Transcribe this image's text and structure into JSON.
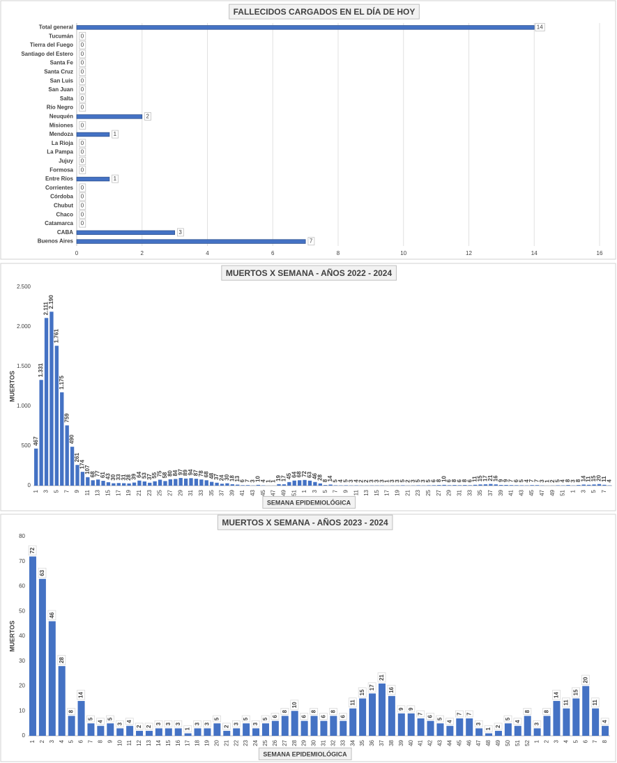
{
  "chart_data": [
    {
      "type": "bar",
      "orientation": "horizontal",
      "title": "FALLECIDOS CARGADOS EN EL DÍA DE HOY",
      "categories": [
        "Total general",
        "Tucumán",
        "Tierra del Fuego",
        "Santiago del Estero",
        "Santa Fe",
        "Santa Cruz",
        "San Luis",
        "San Juan",
        "Salta",
        "Río Negro",
        "Neuquén",
        "Misiones",
        "Mendoza",
        "La Rioja",
        "La Pampa",
        "Jujuy",
        "Formosa",
        "Entre Ríos",
        "Corrientes",
        "Córdoba",
        "Chubut",
        "Chaco",
        "Catamarca",
        "CABA",
        "Buenos Aires"
      ],
      "values": [
        14,
        0,
        0,
        0,
        0,
        0,
        0,
        0,
        0,
        0,
        2,
        0,
        1,
        0,
        0,
        0,
        0,
        1,
        0,
        0,
        0,
        0,
        0,
        3,
        7
      ],
      "color": "#4472c4",
      "xlim": [
        0,
        16
      ],
      "xticks": [
        0,
        2,
        4,
        6,
        8,
        10,
        12,
        14,
        16
      ],
      "grid": true
    },
    {
      "type": "bar",
      "orientation": "vertical",
      "title": "MUERTOS X SEMANA - AÑOS 2022 - 2024",
      "x_label": "SEMANA EPIDEMIOLÓGICA",
      "y_label": "MUERTOS",
      "categories": [
        "1",
        null,
        "3",
        null,
        "5",
        null,
        "7",
        null,
        "9",
        null,
        "11",
        null,
        "13",
        null,
        "15",
        null,
        "17",
        null,
        "19",
        null,
        "21",
        null,
        "23",
        null,
        "25",
        null,
        "27",
        null,
        "29",
        null,
        "31",
        null,
        "33",
        null,
        "35",
        null,
        "37",
        null,
        "39",
        null,
        "41",
        null,
        "43",
        null,
        "45",
        null,
        "47",
        null,
        "49",
        null,
        "51",
        null,
        "1",
        null,
        "3",
        null,
        "5",
        null,
        "7",
        null,
        "9",
        null,
        "11",
        null,
        "13",
        null,
        "15",
        null,
        "17",
        null,
        "19",
        null,
        "21",
        null,
        "23",
        null,
        "25",
        null,
        "27",
        null,
        "29",
        null,
        "31",
        null,
        "33",
        null,
        "35",
        null,
        "37",
        null,
        "39",
        null,
        "41",
        null,
        "43",
        null,
        "45",
        null,
        "47",
        null,
        "49",
        null,
        "51",
        null,
        "1",
        null,
        "3",
        null,
        "5",
        null,
        "7",
        null
      ],
      "values": [
        467,
        1331,
        2111,
        2190,
        1761,
        1175,
        759,
        490,
        261,
        174,
        107,
        68,
        77,
        61,
        43,
        30,
        33,
        31,
        28,
        39,
        64,
        53,
        37,
        55,
        75,
        58,
        80,
        84,
        97,
        89,
        94,
        87,
        78,
        68,
        48,
        37,
        24,
        30,
        18,
        13,
        6,
        7,
        3,
        10,
        4,
        1,
        1,
        19,
        17,
        45,
        64,
        68,
        72,
        63,
        46,
        28,
        8,
        14,
        5,
        4,
        5,
        3,
        4,
        2,
        2,
        3,
        3,
        3,
        1,
        3,
        3,
        5,
        2,
        3,
        5,
        3,
        5,
        6,
        8,
        10,
        6,
        8,
        6,
        8,
        6,
        11,
        15,
        17,
        21,
        16,
        9,
        9,
        7,
        6,
        5,
        4,
        7,
        7,
        3,
        1,
        2,
        5,
        4,
        8,
        3,
        8,
        14,
        11,
        15,
        20,
        11,
        4
      ],
      "value_labels": [
        "467",
        "1.331",
        "2.111",
        "2.190",
        "1.761",
        "1.175",
        "759",
        "490",
        "261",
        "174",
        "107",
        "68",
        "77",
        "61",
        "43",
        "30",
        "33",
        "31",
        "28",
        "39",
        "64",
        "53",
        "37",
        "55",
        "75",
        "58",
        "80",
        "84",
        "97",
        "89",
        "94",
        "87",
        "78",
        "68",
        "48",
        "37",
        "24",
        "30",
        "18",
        "13",
        "6",
        "7",
        "3",
        "10",
        "4",
        "1",
        "1",
        "19",
        "17",
        "45",
        "64",
        "68",
        "72",
        "63",
        "46",
        "28",
        "8",
        "14",
        "5",
        "4",
        "5",
        "3",
        "4",
        "2",
        "2",
        "3",
        "3",
        "3",
        "1",
        "3",
        "3",
        "5",
        "2",
        "3",
        "5",
        "3",
        "5",
        "6",
        "8",
        "10",
        "6",
        "8",
        "6",
        "8",
        "6",
        "11",
        "15",
        "17",
        "21",
        "16",
        "9",
        "9",
        "7",
        "6",
        "5",
        "4",
        "7",
        "7",
        "3",
        "1",
        "2",
        "5",
        "4",
        "8",
        "3",
        "8",
        "14",
        "11",
        "15",
        "20",
        "11",
        "4"
      ],
      "color": "#4472c4",
      "ylim": [
        0,
        2500
      ],
      "yticks": [
        0,
        500,
        {
          "value": 1000,
          "label": "1.000"
        },
        {
          "value": 1500,
          "label": "1.500"
        },
        {
          "value": 2000,
          "label": "2.000"
        },
        {
          "value": 2500,
          "label": "2.500"
        }
      ],
      "grid": false
    },
    {
      "type": "bar",
      "orientation": "vertical",
      "title": "MUERTOS X SEMANA - AÑOS 2023 - 2024",
      "x_label": "SEMANA EPIDEMIOLÓGICA",
      "y_label": "MUERTOS",
      "categories": [
        "1",
        "2",
        "3",
        "4",
        "5",
        "6",
        "7",
        "8",
        "9",
        "10",
        "11",
        "12",
        "13",
        "14",
        "15",
        "16",
        "17",
        "18",
        "19",
        "20",
        "21",
        "22",
        "23",
        "24",
        "25",
        "26",
        "27",
        "28",
        "29",
        "30",
        "31",
        "32",
        "33",
        "34",
        "35",
        "36",
        "37",
        "38",
        "39",
        "40",
        "41",
        "42",
        "43",
        "44",
        "45",
        "46",
        "47",
        "48",
        "49",
        "50",
        "51",
        "52",
        "1",
        "2",
        "3",
        "4",
        "5",
        "6",
        "7",
        "8"
      ],
      "values": [
        72,
        63,
        46,
        28,
        8,
        14,
        5,
        4,
        5,
        3,
        4,
        2,
        2,
        3,
        3,
        3,
        1,
        3,
        3,
        5,
        2,
        3,
        5,
        3,
        5,
        6,
        8,
        10,
        6,
        8,
        6,
        8,
        6,
        11,
        15,
        17,
        21,
        16,
        9,
        9,
        7,
        6,
        5,
        4,
        7,
        7,
        3,
        1,
        2,
        5,
        4,
        8,
        3,
        8,
        14,
        11,
        15,
        20,
        11,
        4
      ],
      "color": "#4472c4",
      "ylim": [
        0,
        80
      ],
      "yticks": [
        0,
        10,
        20,
        30,
        40,
        50,
        60,
        70,
        80
      ],
      "grid": false
    }
  ]
}
